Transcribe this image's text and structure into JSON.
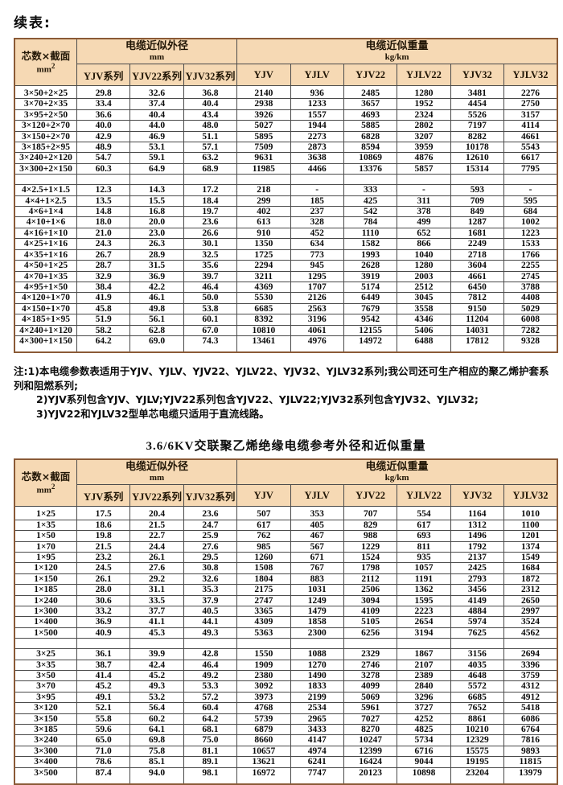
{
  "page": {
    "continued_label": "续表:",
    "table2_title": "3.6/6KV交联聚乙烯绝缘电缆参考外径和近似重量"
  },
  "colors": {
    "header_bg": "#f6d9b4",
    "grid_line": "#4a4a4a",
    "outer_border": "#8a5a36"
  },
  "header": {
    "col1_line1": "芯数×截面",
    "col1_unit": "mm",
    "col1_sup": "2",
    "od_group": "电缆近似外径",
    "od_unit": "mm",
    "wt_group": "电缆近似重量",
    "wt_unit": "kg/km",
    "od_cols": [
      "YJV系列",
      "YJV22系列",
      "YJV32系列"
    ],
    "wt_cols": [
      "YJV",
      "YJLV",
      "YJV22",
      "YJLV22",
      "YJV32",
      "YJLV32"
    ]
  },
  "table1": {
    "groups": [
      [
        [
          "3×50+2×25",
          "29.8",
          "32.6",
          "36.8",
          "2140",
          "936",
          "2485",
          "1280",
          "3481",
          "2276"
        ],
        [
          "3×70+2×35",
          "33.4",
          "37.4",
          "40.4",
          "2938",
          "1233",
          "3657",
          "1952",
          "4454",
          "2750"
        ],
        [
          "3×95+2×50",
          "36.6",
          "40.4",
          "43.4",
          "3926",
          "1557",
          "4693",
          "2324",
          "5526",
          "3157"
        ],
        [
          "3×120+2×70",
          "40.0",
          "44.0",
          "48.0",
          "5027",
          "1944",
          "5885",
          "2802",
          "7197",
          "4114"
        ],
        [
          "3×150+2×70",
          "42.9",
          "46.9",
          "51.1",
          "5895",
          "2273",
          "6828",
          "3207",
          "8282",
          "4661"
        ],
        [
          "3×185+2×95",
          "48.9",
          "53.1",
          "57.1",
          "7509",
          "2873",
          "8594",
          "3959",
          "10178",
          "5543"
        ],
        [
          "3×240+2×120",
          "54.7",
          "59.1",
          "63.2",
          "9631",
          "3638",
          "10869",
          "4876",
          "12610",
          "6617"
        ],
        [
          "3×300+2×150",
          "60.3",
          "64.9",
          "68.9",
          "11985",
          "4466",
          "13376",
          "5857",
          "15314",
          "7795"
        ]
      ],
      [
        [
          "4×2.5+1×1.5",
          "12.3",
          "14.3",
          "17.2",
          "218",
          "-",
          "333",
          "-",
          "593",
          "-"
        ],
        [
          "4×4+1×2.5",
          "13.5",
          "15.5",
          "18.4",
          "299",
          "185",
          "425",
          "311",
          "709",
          "595"
        ],
        [
          "4×6+1×4",
          "14.8",
          "16.8",
          "19.7",
          "402",
          "237",
          "542",
          "378",
          "849",
          "684"
        ],
        [
          "4×10+1×6",
          "18.0",
          "20.0",
          "23.6",
          "613",
          "328",
          "784",
          "499",
          "1287",
          "1002"
        ],
        [
          "4×16+1×10",
          "21.0",
          "23.0",
          "26.6",
          "910",
          "452",
          "1110",
          "652",
          "1681",
          "1223"
        ],
        [
          "4×25+1×16",
          "24.3",
          "26.3",
          "30.1",
          "1350",
          "634",
          "1582",
          "866",
          "2249",
          "1533"
        ],
        [
          "4×35+1×16",
          "26.7",
          "28.9",
          "32.5",
          "1725",
          "773",
          "1993",
          "1040",
          "2718",
          "1766"
        ],
        [
          "4×50+1×25",
          "28.7",
          "31.5",
          "35.6",
          "2294",
          "945",
          "2628",
          "1280",
          "3604",
          "2255"
        ],
        [
          "4×70+1×35",
          "32.9",
          "36.9",
          "39.7",
          "3211",
          "1295",
          "3919",
          "2003",
          "4661",
          "2745"
        ],
        [
          "4×95+1×50",
          "38.4",
          "42.2",
          "46.4",
          "4369",
          "1707",
          "5174",
          "2512",
          "6450",
          "3788"
        ],
        [
          "4×120+1×70",
          "41.9",
          "46.1",
          "50.0",
          "5530",
          "2126",
          "6449",
          "3045",
          "7812",
          "4408"
        ],
        [
          "4×150+1×70",
          "45.8",
          "49.8",
          "53.8",
          "6685",
          "2563",
          "7679",
          "3558",
          "9150",
          "5029"
        ],
        [
          "4×185+1×95",
          "51.9",
          "56.1",
          "60.1",
          "8392",
          "3196",
          "9542",
          "4346",
          "11204",
          "6008"
        ],
        [
          "4×240+1×120",
          "58.2",
          "62.8",
          "67.0",
          "10810",
          "4061",
          "12155",
          "5406",
          "14031",
          "7282"
        ],
        [
          "4×300+1×150",
          "64.2",
          "69.0",
          "74.3",
          "13461",
          "4976",
          "14972",
          "6488",
          "17812",
          "9328"
        ]
      ]
    ]
  },
  "notes": {
    "line1": "注:1)本电缆参数表适用于YJV、YJLV、YJV22、YJLV22、YJV32、YJLV32系列;我公司还可生产相应的聚乙烯护套系列和阻燃系列;",
    "line2": "2)YJV系列包含YJV、YJLV;YJV22系列包含YJV22、YJLV22;YJV32系列包含YJV32、YJLV32;",
    "line3": "3)YJV22和YJLV32型单芯电缆只适用于直流线路。"
  },
  "table2": {
    "groups": [
      [
        [
          "1×25",
          "17.5",
          "20.4",
          "23.6",
          "507",
          "353",
          "707",
          "554",
          "1164",
          "1010"
        ],
        [
          "1×35",
          "18.6",
          "21.5",
          "24.7",
          "617",
          "405",
          "829",
          "617",
          "1312",
          "1100"
        ],
        [
          "1×50",
          "19.8",
          "22.7",
          "25.9",
          "762",
          "467",
          "988",
          "693",
          "1496",
          "1201"
        ],
        [
          "1×70",
          "21.5",
          "24.4",
          "27.6",
          "985",
          "567",
          "1229",
          "811",
          "1792",
          "1374"
        ],
        [
          "1×95",
          "23.2",
          "26.1",
          "29.5",
          "1260",
          "671",
          "1524",
          "935",
          "2137",
          "1549"
        ],
        [
          "1×120",
          "24.5",
          "27.6",
          "30.8",
          "1508",
          "767",
          "1798",
          "1057",
          "2425",
          "1684"
        ],
        [
          "1×150",
          "26.1",
          "29.2",
          "32.6",
          "1804",
          "883",
          "2112",
          "1191",
          "2793",
          "1872"
        ],
        [
          "1×185",
          "28.0",
          "31.1",
          "35.3",
          "2175",
          "1031",
          "2506",
          "1362",
          "3456",
          "2312"
        ],
        [
          "1×240",
          "30.6",
          "33.5",
          "37.9",
          "2747",
          "1249",
          "3094",
          "1595",
          "4149",
          "2650"
        ],
        [
          "1×300",
          "33.2",
          "37.7",
          "40.5",
          "3365",
          "1479",
          "4109",
          "2223",
          "4884",
          "2997"
        ],
        [
          "1×400",
          "36.9",
          "41.1",
          "44.1",
          "4309",
          "1858",
          "5105",
          "2654",
          "5974",
          "3524"
        ],
        [
          "1×500",
          "40.9",
          "45.3",
          "49.3",
          "5363",
          "2300",
          "6256",
          "3194",
          "7625",
          "4562"
        ]
      ],
      [
        [
          "3×25",
          "36.1",
          "39.9",
          "42.8",
          "1550",
          "1088",
          "2329",
          "1867",
          "3156",
          "2694"
        ],
        [
          "3×35",
          "38.7",
          "42.4",
          "46.4",
          "1909",
          "1270",
          "2746",
          "2107",
          "4035",
          "3396"
        ],
        [
          "3×50",
          "41.4",
          "45.2",
          "49.2",
          "2380",
          "1490",
          "3278",
          "2389",
          "4648",
          "3759"
        ],
        [
          "3×70",
          "45.2",
          "49.3",
          "53.3",
          "3092",
          "1833",
          "4099",
          "2840",
          "5572",
          "4312"
        ],
        [
          "3×95",
          "49.1",
          "53.2",
          "57.2",
          "3973",
          "2199",
          "5069",
          "3296",
          "6685",
          "4912"
        ],
        [
          "3×120",
          "52.1",
          "56.4",
          "60.4",
          "4768",
          "2534",
          "5961",
          "3727",
          "7652",
          "5418"
        ],
        [
          "3×150",
          "55.8",
          "60.2",
          "64.2",
          "5739",
          "2965",
          "7027",
          "4252",
          "8861",
          "6086"
        ],
        [
          "3×185",
          "59.6",
          "64.1",
          "68.1",
          "6879",
          "3433",
          "8270",
          "4825",
          "10210",
          "6764"
        ],
        [
          "3×240",
          "65.0",
          "69.8",
          "75.0",
          "8660",
          "4147",
          "10247",
          "5734",
          "12329",
          "7816"
        ],
        [
          "3×300",
          "71.0",
          "75.8",
          "81.1",
          "10657",
          "4974",
          "12399",
          "6716",
          "15575",
          "9893"
        ],
        [
          "3×400",
          "78.6",
          "85.1",
          "89.1",
          "13621",
          "6241",
          "16424",
          "9044",
          "19195",
          "11815"
        ],
        [
          "3×500",
          "87.4",
          "94.0",
          "98.1",
          "16972",
          "7747",
          "20123",
          "10898",
          "23204",
          "13979"
        ]
      ]
    ]
  }
}
